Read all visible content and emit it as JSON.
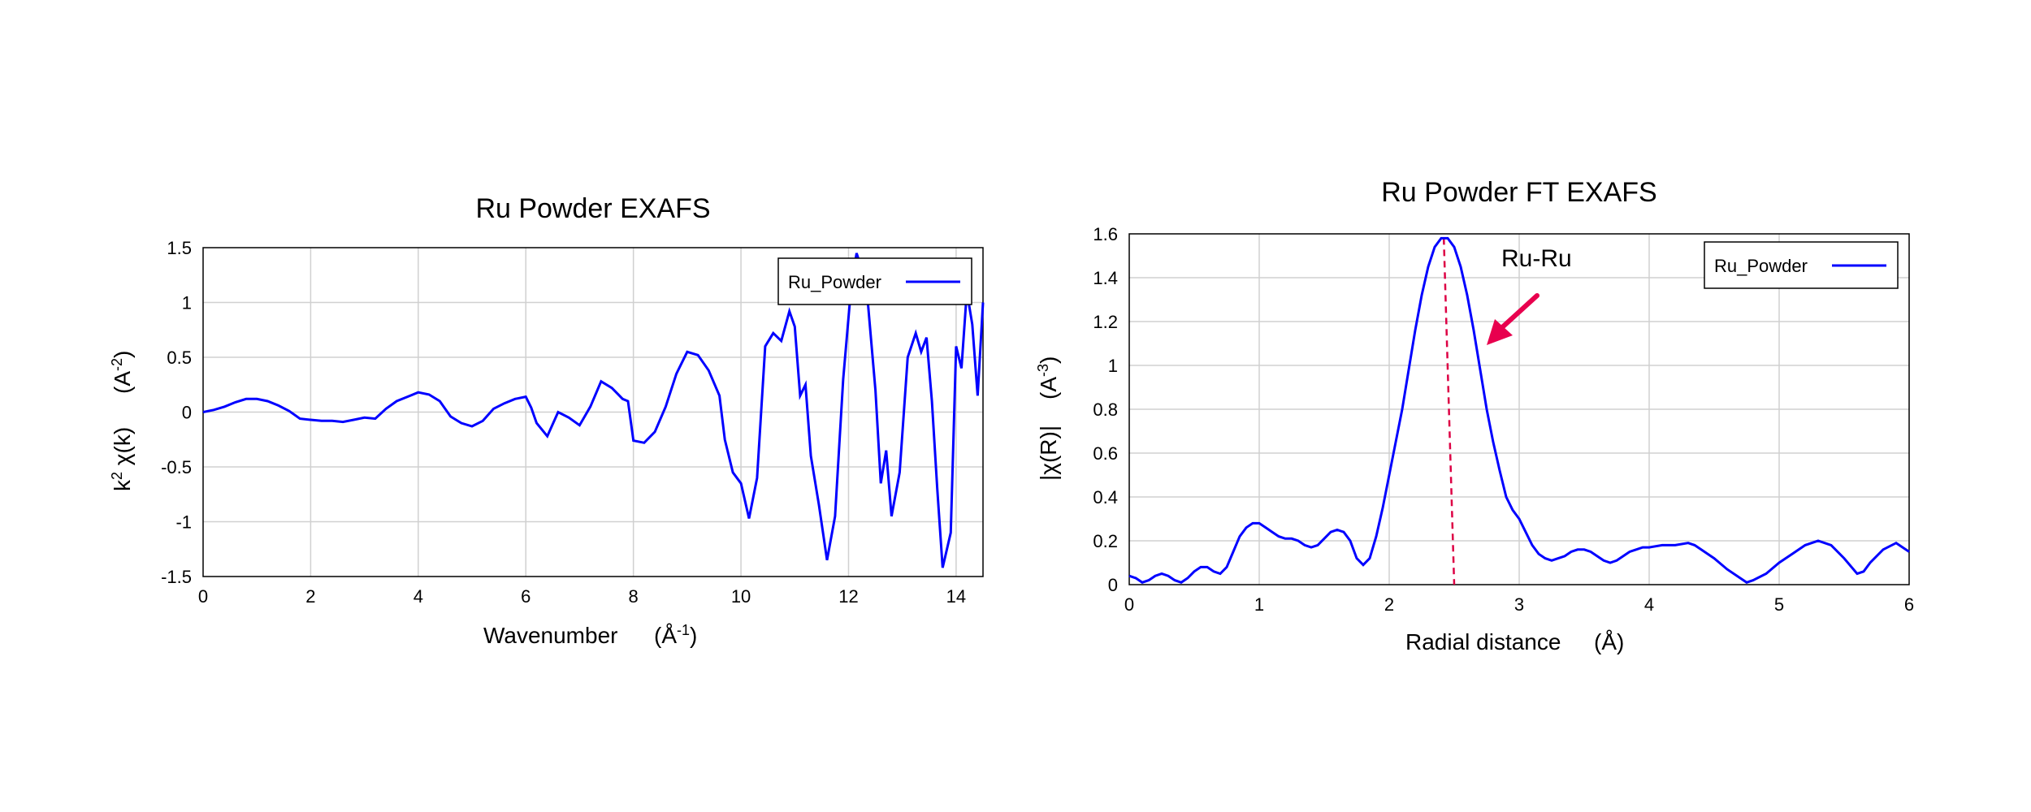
{
  "chart_data": [
    {
      "type": "line",
      "title": "Ru Powder EXAFS",
      "xlabel": "Wavenumber",
      "xlabel_unit": "(Å-1)",
      "ylabel": "k2 χ(k)",
      "ylabel_unit": "(A-2)",
      "xlim": [
        0,
        14.5
      ],
      "ylim": [
        -1.5,
        1.5
      ],
      "x_ticks": [
        0,
        2,
        4,
        6,
        8,
        10,
        12,
        14
      ],
      "y_ticks": [
        -1.5,
        -1,
        -0.5,
        0,
        0.5,
        1,
        1.5
      ],
      "grid": true,
      "legend_position": "top-right",
      "series": [
        {
          "name": "Ru_Powder",
          "color": "#0000ff",
          "points": [
            [
              0,
              0
            ],
            [
              0.2,
              0.02
            ],
            [
              0.4,
              0.05
            ],
            [
              0.6,
              0.09
            ],
            [
              0.8,
              0.12
            ],
            [
              1.0,
              0.12
            ],
            [
              1.2,
              0.1
            ],
            [
              1.4,
              0.06
            ],
            [
              1.6,
              0.01
            ],
            [
              1.8,
              -0.06
            ],
            [
              2.0,
              -0.07
            ],
            [
              2.2,
              -0.08
            ],
            [
              2.4,
              -0.08
            ],
            [
              2.6,
              -0.09
            ],
            [
              2.8,
              -0.07
            ],
            [
              3.0,
              -0.05
            ],
            [
              3.2,
              -0.06
            ],
            [
              3.4,
              0.03
            ],
            [
              3.6,
              0.1
            ],
            [
              3.8,
              0.14
            ],
            [
              4.0,
              0.18
            ],
            [
              4.2,
              0.16
            ],
            [
              4.4,
              0.1
            ],
            [
              4.6,
              -0.04
            ],
            [
              4.8,
              -0.1
            ],
            [
              5.0,
              -0.13
            ],
            [
              5.2,
              -0.08
            ],
            [
              5.4,
              0.03
            ],
            [
              5.6,
              0.08
            ],
            [
              5.8,
              0.12
            ],
            [
              6.0,
              0.14
            ],
            [
              6.1,
              0.04
            ],
            [
              6.2,
              -0.1
            ],
            [
              6.4,
              -0.22
            ],
            [
              6.6,
              0.0
            ],
            [
              6.8,
              -0.05
            ],
            [
              7.0,
              -0.12
            ],
            [
              7.2,
              0.05
            ],
            [
              7.4,
              0.28
            ],
            [
              7.6,
              0.22
            ],
            [
              7.8,
              0.12
            ],
            [
              7.9,
              0.1
            ],
            [
              8.0,
              -0.26
            ],
            [
              8.2,
              -0.28
            ],
            [
              8.4,
              -0.18
            ],
            [
              8.6,
              0.05
            ],
            [
              8.8,
              0.35
            ],
            [
              9.0,
              0.55
            ],
            [
              9.2,
              0.52
            ],
            [
              9.4,
              0.38
            ],
            [
              9.6,
              0.15
            ],
            [
              9.7,
              -0.25
            ],
            [
              9.85,
              -0.55
            ],
            [
              10.0,
              -0.65
            ],
            [
              10.15,
              -0.97
            ],
            [
              10.3,
              -0.6
            ],
            [
              10.45,
              0.6
            ],
            [
              10.6,
              0.72
            ],
            [
              10.75,
              0.65
            ],
            [
              10.9,
              0.92
            ],
            [
              11.0,
              0.78
            ],
            [
              11.1,
              0.15
            ],
            [
              11.2,
              0.25
            ],
            [
              11.3,
              -0.4
            ],
            [
              11.45,
              -0.85
            ],
            [
              11.6,
              -1.35
            ],
            [
              11.75,
              -0.95
            ],
            [
              11.9,
              0.3
            ],
            [
              12.05,
              1.15
            ],
            [
              12.15,
              1.45
            ],
            [
              12.25,
              1.3
            ],
            [
              12.35,
              1.05
            ],
            [
              12.5,
              0.2
            ],
            [
              12.6,
              -0.65
            ],
            [
              12.7,
              -0.35
            ],
            [
              12.8,
              -0.95
            ],
            [
              12.95,
              -0.55
            ],
            [
              13.1,
              0.5
            ],
            [
              13.25,
              0.72
            ],
            [
              13.35,
              0.55
            ],
            [
              13.45,
              0.68
            ],
            [
              13.55,
              0.1
            ],
            [
              13.65,
              -0.7
            ],
            [
              13.75,
              -1.42
            ],
            [
              13.9,
              -1.1
            ],
            [
              14.0,
              0.6
            ],
            [
              14.1,
              0.4
            ],
            [
              14.2,
              1.1
            ],
            [
              14.3,
              0.8
            ],
            [
              14.4,
              0.15
            ],
            [
              14.5,
              1.0
            ]
          ]
        }
      ]
    },
    {
      "type": "line",
      "title": "Ru Powder FT EXAFS",
      "xlabel": "Radial distance",
      "xlabel_unit": "(Å)",
      "ylabel": "|χ(R)|",
      "ylabel_unit": "(A-3)",
      "xlim": [
        0,
        6
      ],
      "ylim": [
        0,
        1.6
      ],
      "x_ticks": [
        0,
        1,
        2,
        3,
        4,
        5,
        6
      ],
      "y_ticks": [
        0,
        0.2,
        0.4,
        0.6,
        0.8,
        1,
        1.2,
        1.4,
        1.6
      ],
      "grid": true,
      "legend_position": "top-right",
      "annotation": {
        "text": "Ru-Ru",
        "marker_x": 2.5
      },
      "series": [
        {
          "name": "Ru_Powder",
          "color": "#0000ff",
          "points": [
            [
              0,
              0.04
            ],
            [
              0.05,
              0.03
            ],
            [
              0.1,
              0.01
            ],
            [
              0.15,
              0.02
            ],
            [
              0.2,
              0.04
            ],
            [
              0.25,
              0.05
            ],
            [
              0.3,
              0.04
            ],
            [
              0.35,
              0.02
            ],
            [
              0.4,
              0.01
            ],
            [
              0.45,
              0.03
            ],
            [
              0.5,
              0.06
            ],
            [
              0.55,
              0.08
            ],
            [
              0.6,
              0.08
            ],
            [
              0.65,
              0.06
            ],
            [
              0.7,
              0.05
            ],
            [
              0.75,
              0.08
            ],
            [
              0.8,
              0.15
            ],
            [
              0.85,
              0.22
            ],
            [
              0.9,
              0.26
            ],
            [
              0.95,
              0.28
            ],
            [
              1.0,
              0.28
            ],
            [
              1.05,
              0.26
            ],
            [
              1.1,
              0.24
            ],
            [
              1.15,
              0.22
            ],
            [
              1.2,
              0.21
            ],
            [
              1.25,
              0.21
            ],
            [
              1.3,
              0.2
            ],
            [
              1.35,
              0.18
            ],
            [
              1.4,
              0.17
            ],
            [
              1.45,
              0.18
            ],
            [
              1.5,
              0.21
            ],
            [
              1.55,
              0.24
            ],
            [
              1.6,
              0.25
            ],
            [
              1.65,
              0.24
            ],
            [
              1.7,
              0.2
            ],
            [
              1.75,
              0.12
            ],
            [
              1.8,
              0.09
            ],
            [
              1.85,
              0.12
            ],
            [
              1.9,
              0.22
            ],
            [
              1.95,
              0.35
            ],
            [
              2.0,
              0.5
            ],
            [
              2.05,
              0.65
            ],
            [
              2.1,
              0.8
            ],
            [
              2.15,
              0.98
            ],
            [
              2.2,
              1.16
            ],
            [
              2.25,
              1.32
            ],
            [
              2.3,
              1.45
            ],
            [
              2.35,
              1.54
            ],
            [
              2.4,
              1.58
            ],
            [
              2.45,
              1.58
            ],
            [
              2.5,
              1.54
            ],
            [
              2.55,
              1.45
            ],
            [
              2.6,
              1.32
            ],
            [
              2.65,
              1.16
            ],
            [
              2.7,
              0.98
            ],
            [
              2.75,
              0.8
            ],
            [
              2.8,
              0.65
            ],
            [
              2.85,
              0.52
            ],
            [
              2.9,
              0.4
            ],
            [
              2.95,
              0.34
            ],
            [
              3.0,
              0.3
            ],
            [
              3.05,
              0.24
            ],
            [
              3.1,
              0.18
            ],
            [
              3.15,
              0.14
            ],
            [
              3.2,
              0.12
            ],
            [
              3.25,
              0.11
            ],
            [
              3.3,
              0.12
            ],
            [
              3.35,
              0.13
            ],
            [
              3.4,
              0.15
            ],
            [
              3.45,
              0.16
            ],
            [
              3.5,
              0.16
            ],
            [
              3.55,
              0.15
            ],
            [
              3.6,
              0.13
            ],
            [
              3.65,
              0.11
            ],
            [
              3.7,
              0.1
            ],
            [
              3.75,
              0.11
            ],
            [
              3.8,
              0.13
            ],
            [
              3.85,
              0.15
            ],
            [
              3.9,
              0.16
            ],
            [
              3.95,
              0.17
            ],
            [
              4.0,
              0.17
            ],
            [
              4.1,
              0.18
            ],
            [
              4.2,
              0.18
            ],
            [
              4.3,
              0.19
            ],
            [
              4.35,
              0.18
            ],
            [
              4.4,
              0.16
            ],
            [
              4.5,
              0.12
            ],
            [
              4.6,
              0.07
            ],
            [
              4.7,
              0.03
            ],
            [
              4.75,
              0.01
            ],
            [
              4.8,
              0.02
            ],
            [
              4.9,
              0.05
            ],
            [
              5.0,
              0.1
            ],
            [
              5.1,
              0.14
            ],
            [
              5.2,
              0.18
            ],
            [
              5.3,
              0.2
            ],
            [
              5.4,
              0.18
            ],
            [
              5.5,
              0.12
            ],
            [
              5.6,
              0.05
            ],
            [
              5.65,
              0.06
            ],
            [
              5.7,
              0.1
            ],
            [
              5.8,
              0.16
            ],
            [
              5.9,
              0.19
            ],
            [
              6.0,
              0.15
            ]
          ]
        }
      ]
    }
  ]
}
